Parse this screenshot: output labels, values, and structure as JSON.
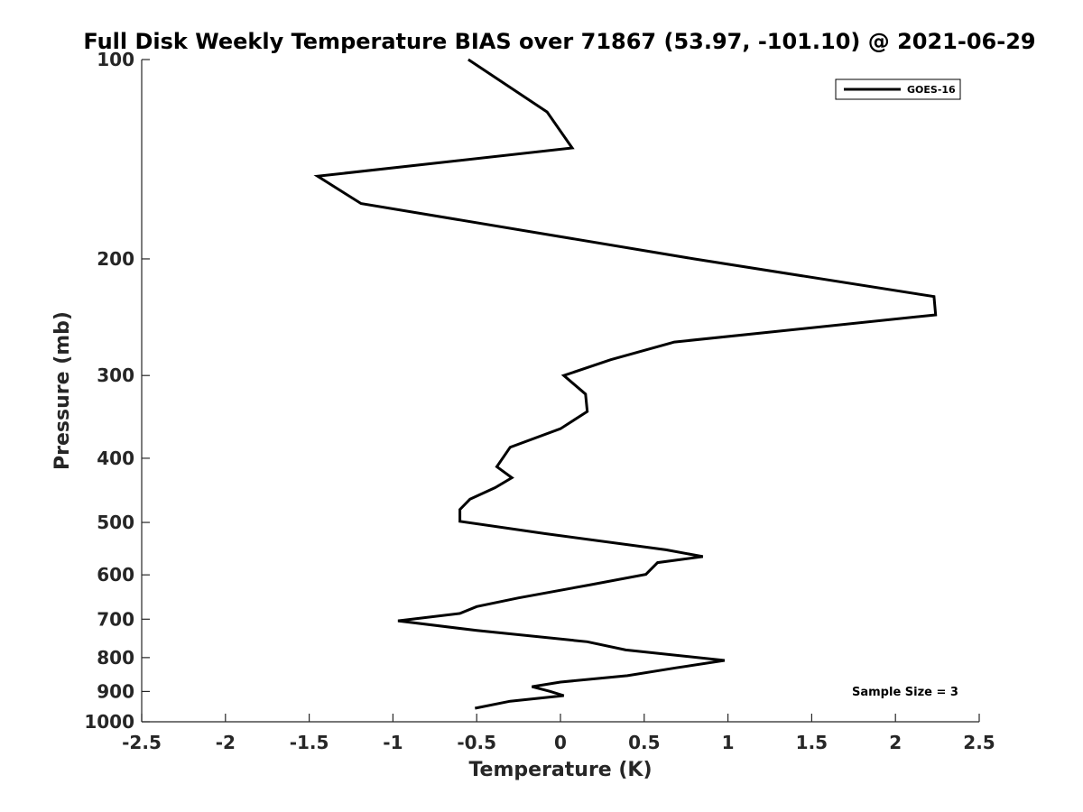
{
  "chart_data": {
    "type": "line",
    "title": "Full Disk Weekly Temperature BIAS over 71867 (53.97, -101.10) @ 2021-06-29",
    "xlabel": "Temperature (K)",
    "ylabel": "Pressure (mb)",
    "xlim": [
      -2.5,
      2.5
    ],
    "ylim": [
      1000,
      100
    ],
    "yscale": "log",
    "y_reversed": true,
    "grid": false,
    "legend_position": "top-right",
    "x_ticks": [
      -2.5,
      -2,
      -1.5,
      -1,
      -0.5,
      0,
      0.5,
      1,
      1.5,
      2,
      2.5
    ],
    "x_tick_labels": [
      "-2.5",
      "-2",
      "-1.5",
      "-1",
      "-0.5",
      "0",
      "0.5",
      "1",
      "1.5",
      "2",
      "2.5"
    ],
    "y_ticks": [
      100,
      200,
      300,
      400,
      500,
      600,
      700,
      800,
      900,
      1000
    ],
    "y_tick_labels": [
      "100",
      "200",
      "300",
      "400",
      "500",
      "600",
      "700",
      "800",
      "900",
      "1000"
    ],
    "annotation": "Sample Size = 3",
    "series_color": "#000000",
    "series": [
      {
        "name": "GOES-16",
        "x": [
          -0.55,
          -0.08,
          0.07,
          -1.45,
          -1.19,
          0.8,
          2.23,
          2.24,
          0.68,
          0.3,
          0.02,
          0.15,
          0.16,
          0.0,
          -0.3,
          -0.38,
          -0.29,
          -0.39,
          -0.54,
          -0.6,
          -0.6,
          -0.09,
          0.63,
          0.85,
          0.58,
          0.51,
          0.18,
          -0.25,
          -0.5,
          -0.6,
          -0.97,
          -0.5,
          0.16,
          0.39,
          0.98,
          0.69,
          0.4,
          0.0,
          -0.17,
          -0.06,
          0.02,
          -0.3,
          -0.51
        ],
        "y": [
          100,
          120,
          136,
          150,
          165,
          200,
          228,
          243,
          267,
          284,
          300,
          320,
          340,
          361,
          385,
          412,
          428,
          443,
          461,
          478,
          498,
          520,
          550,
          563,
          575,
          599,
          621,
          650,
          670,
          686,
          704,
          728,
          757,
          779,
          808,
          829,
          852,
          871,
          885,
          900,
          913,
          931,
          954
        ]
      }
    ]
  }
}
